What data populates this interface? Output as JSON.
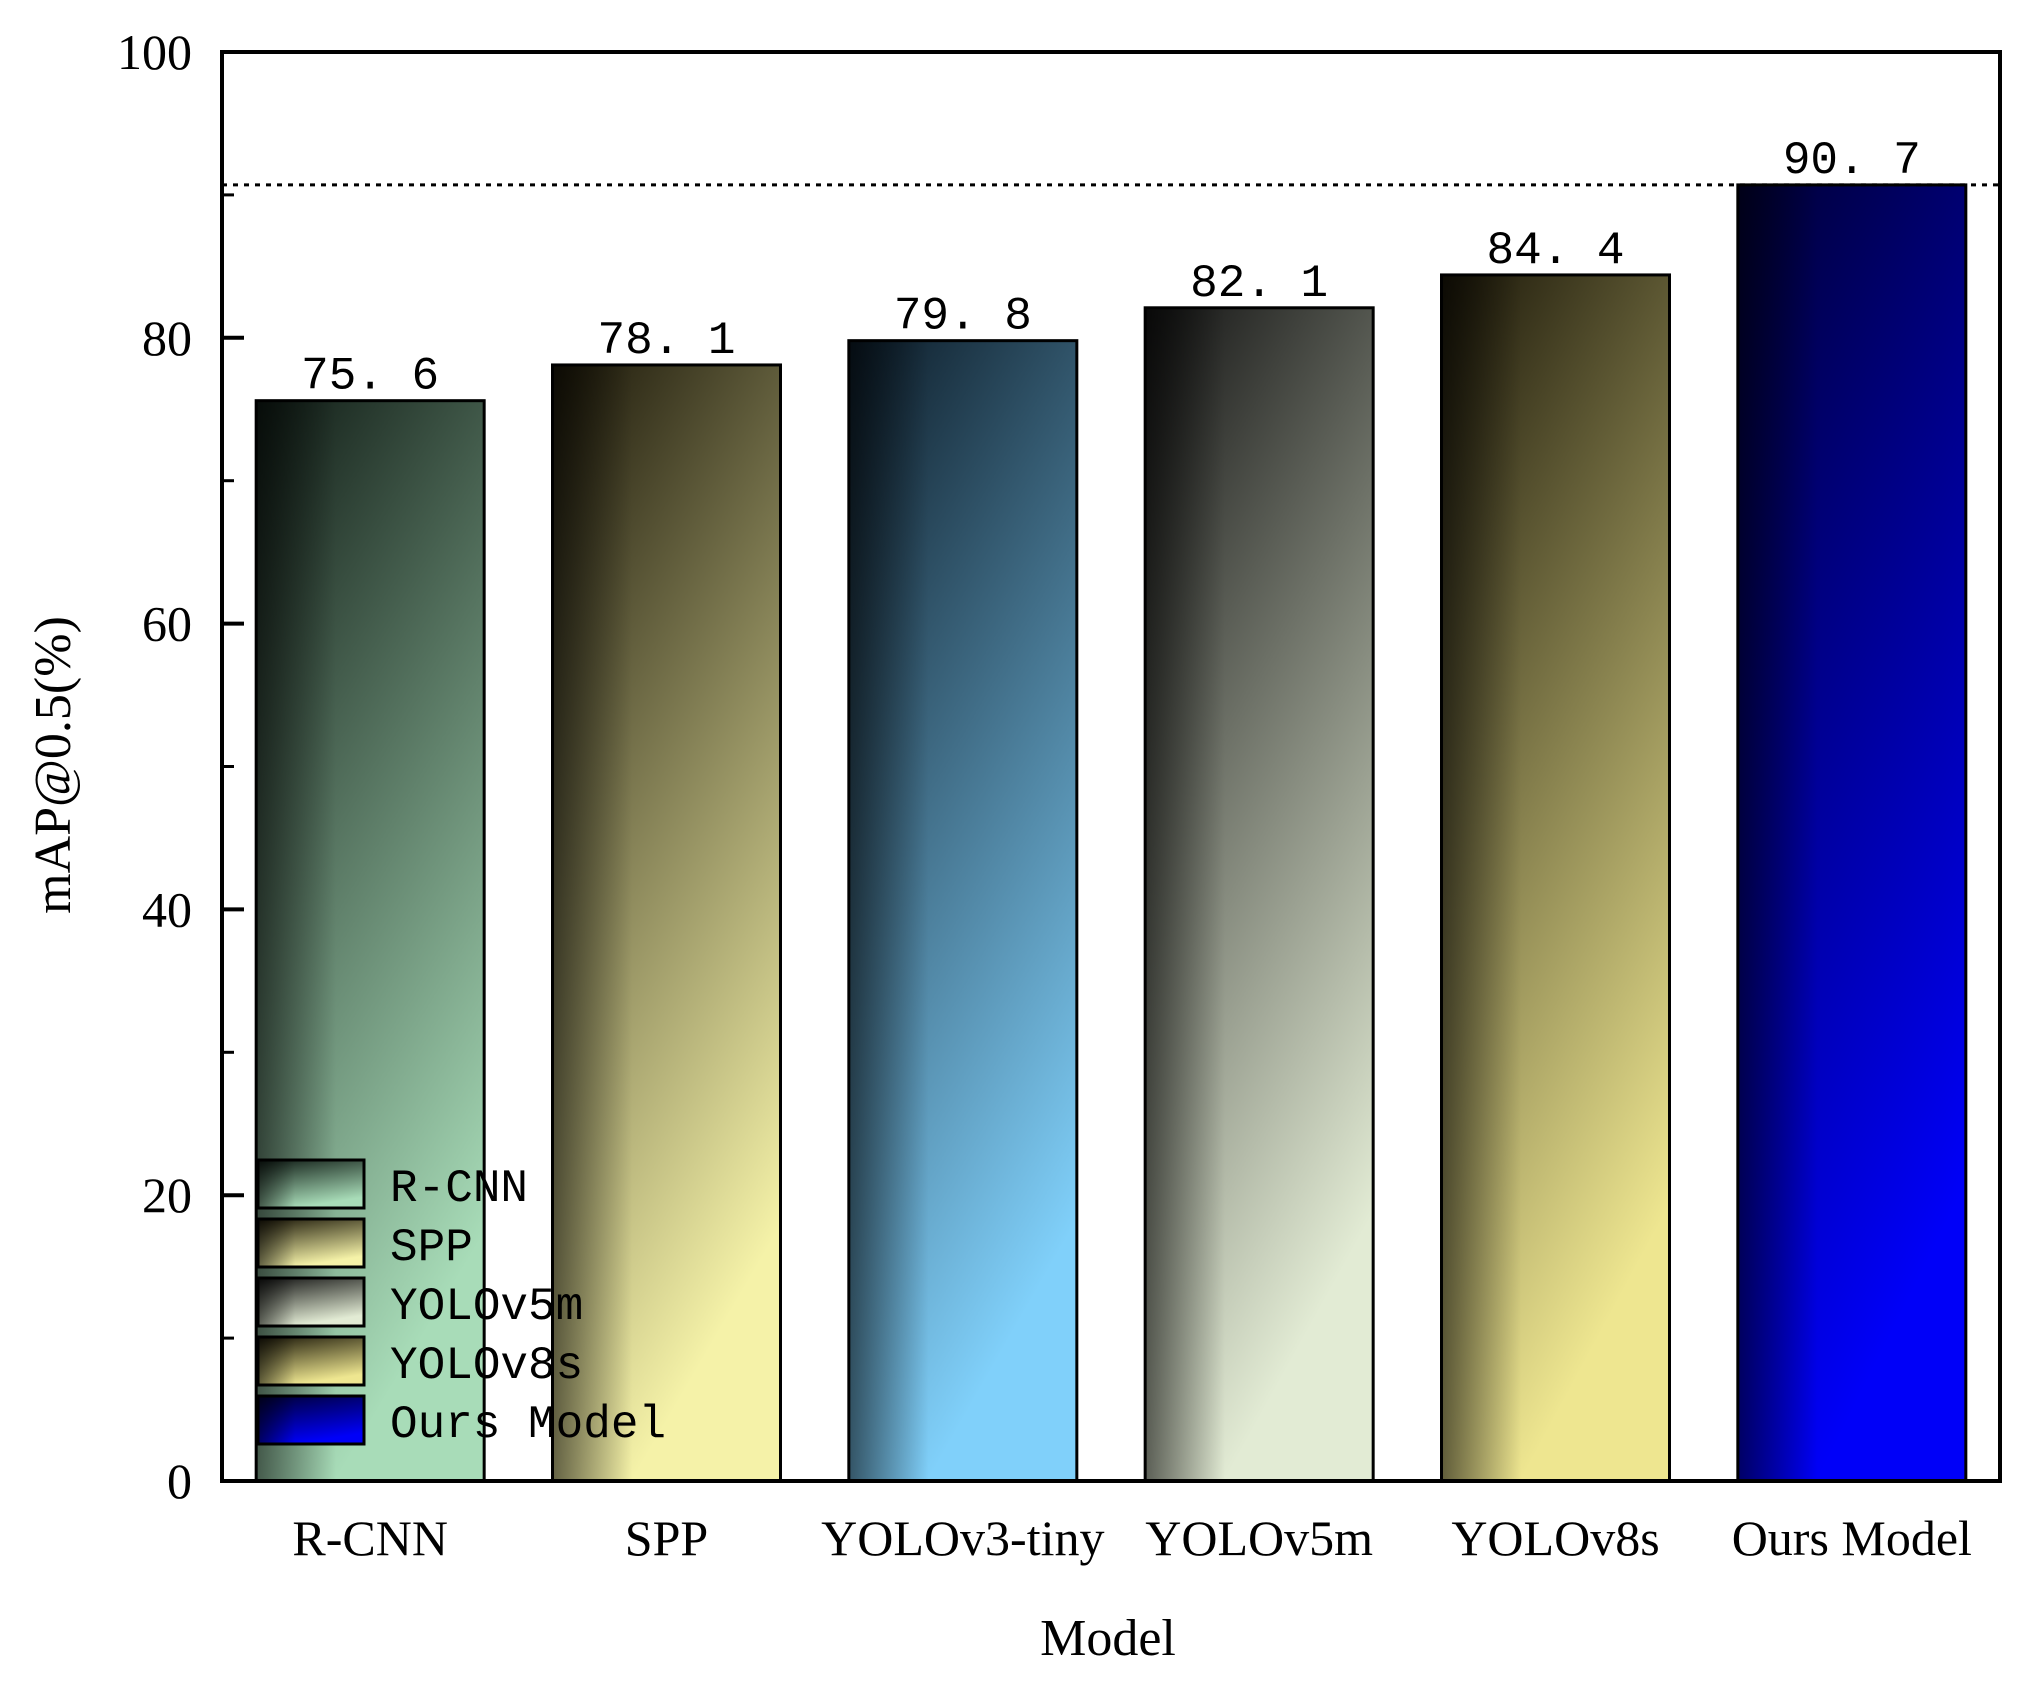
{
  "chart_data": {
    "type": "bar",
    "title": "",
    "xlabel": "Model",
    "ylabel": "mAP@0.5(%)",
    "ylim": [
      0,
      100
    ],
    "yticks": [
      0,
      20,
      40,
      60,
      80,
      100
    ],
    "categories": [
      "R-CNN",
      "SPP",
      "YOLOv3-tiny",
      "YOLOv5m",
      "YOLOv8s",
      "Ours Model"
    ],
    "values": [
      75.6,
      78.1,
      79.8,
      82.1,
      84.4,
      90.7
    ],
    "data_labels": [
      "75. 6",
      "78. 1",
      "79. 8",
      "82. 1",
      "84. 4",
      "90. 7"
    ],
    "reference_line": {
      "value": 90.7,
      "style": "dotted"
    },
    "legend": {
      "position": "bottom-left",
      "entries": [
        "R-CNN",
        "SPP",
        "YOLOv5m",
        "YOLOv8s",
        "Ours Model"
      ]
    },
    "bar_colors": [
      {
        "dark": "#0f1a14",
        "light": "#a8dcb8"
      },
      {
        "dark": "#1a1608",
        "light": "#f5f2a8"
      },
      {
        "dark": "#0b1a26",
        "light": "#80d0fa"
      },
      {
        "dark": "#121212",
        "light": "#e2ebd4"
      },
      {
        "dark": "#1a1608",
        "light": "#eee690"
      },
      {
        "dark": "#000033",
        "light": "#0000f8"
      }
    ]
  }
}
